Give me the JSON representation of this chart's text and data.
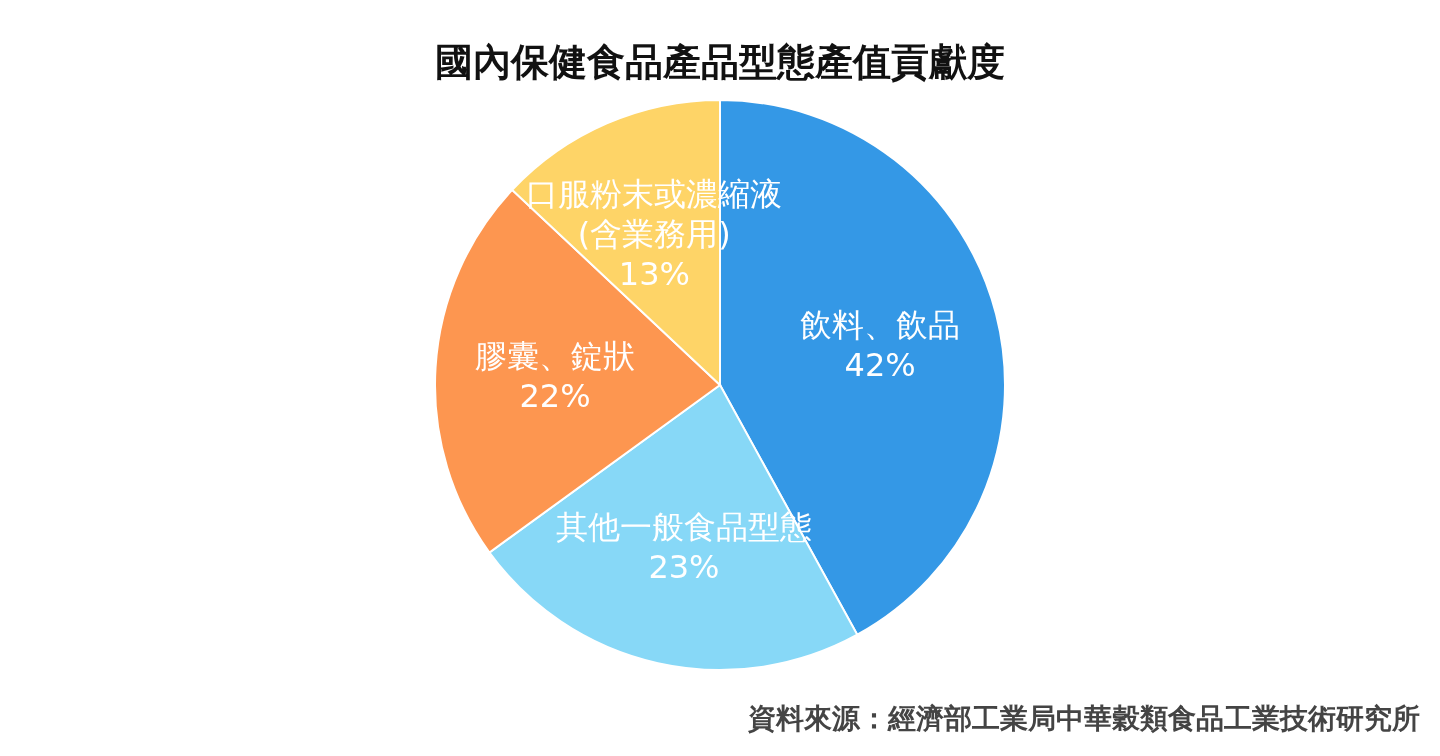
{
  "chart_data": {
    "type": "pie",
    "title": "國內保健食品產品型態產值貢獻度",
    "categories": [
      "飲料、飲品",
      "其他一般食品型態",
      "膠囊、錠狀",
      "口服粉末或濃縮液(含業務用)"
    ],
    "values": [
      42,
      23,
      22,
      13
    ],
    "colors": [
      "#3498e6",
      "#87d8f7",
      "#fd9650",
      "#fed467"
    ],
    "value_labels": [
      "42%",
      "23%",
      "22%",
      "13%"
    ],
    "annotations": [
      "資料來源：經濟部工業局中華穀類食品工業技術研究所"
    ]
  }
}
